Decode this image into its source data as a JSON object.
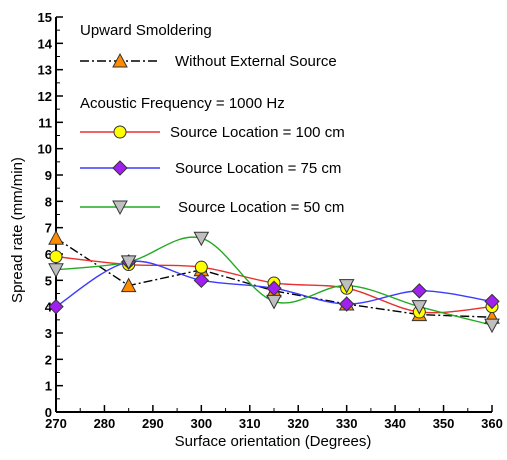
{
  "chart_data": {
    "type": "line",
    "title": "",
    "xlabel": "Surface orientation (Degrees)",
    "ylabel": "Spread rate (mm/min)",
    "xlim": [
      270,
      360
    ],
    "ylim": [
      0,
      15
    ],
    "x_ticks": [
      270,
      280,
      290,
      300,
      310,
      320,
      330,
      340,
      350,
      360
    ],
    "y_ticks": [
      0,
      1,
      2,
      3,
      4,
      5,
      6,
      7,
      8,
      9,
      10,
      11,
      12,
      13,
      14,
      15
    ],
    "grid": false,
    "legend_position": "upper-left",
    "legend_heading": "Upward Smoldering",
    "legend_subheading": "Acoustic Frequency = 1000 Hz",
    "x": [
      270,
      285,
      300,
      315,
      330,
      345,
      360
    ],
    "series": [
      {
        "name": "Without External Source",
        "values": [
          6.6,
          4.8,
          5.4,
          4.6,
          4.1,
          3.7,
          3.6
        ],
        "line_color": "#000000",
        "marker": "triangle-up",
        "marker_color": "#ff8c00",
        "dash": "dash-dot"
      },
      {
        "name": "Source Location = 100 cm",
        "values": [
          5.9,
          5.6,
          5.5,
          4.9,
          4.7,
          3.8,
          4.0
        ],
        "line_color": "#e8302c",
        "marker": "circle",
        "marker_color": "#ffff00",
        "dash": "solid"
      },
      {
        "name": "Source Location = 75 cm",
        "values": [
          4.0,
          5.7,
          5.0,
          4.7,
          4.1,
          4.6,
          4.2
        ],
        "line_color": "#3c3cff",
        "marker": "diamond",
        "marker_color": "#a020f0",
        "dash": "solid"
      },
      {
        "name": "Source Location = 50 cm",
        "values": [
          5.4,
          5.7,
          6.6,
          4.2,
          4.8,
          4.0,
          3.3
        ],
        "line_color": "#22aa22",
        "marker": "triangle-down",
        "marker_color": "#bfbfbf",
        "dash": "solid"
      }
    ]
  }
}
